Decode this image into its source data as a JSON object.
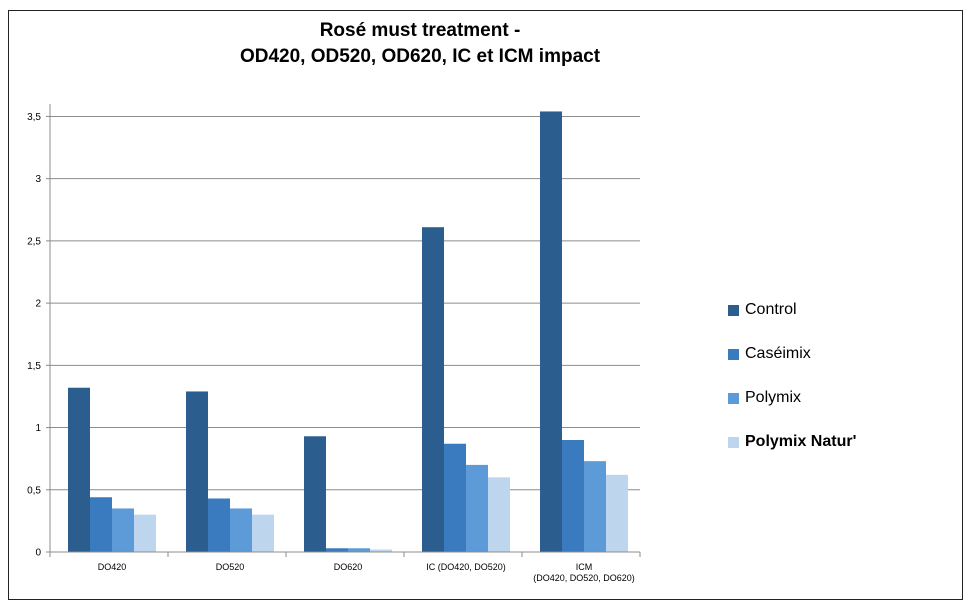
{
  "chart_data": {
    "type": "bar",
    "title_lines": [
      "Rosé must treatment -",
      "OD420, OD520, OD620, IC et ICM impact"
    ],
    "categories": [
      [
        "DO420"
      ],
      [
        "DO520"
      ],
      [
        "DO620"
      ],
      [
        "IC (DO420, DO520)"
      ],
      [
        "ICM",
        "(DO420, DO520, DO620)"
      ]
    ],
    "series": [
      {
        "name": "Control",
        "color": "#2c5d8f",
        "values": [
          1.32,
          1.29,
          0.93,
          2.61,
          3.54
        ]
      },
      {
        "name": "Caséimix",
        "color": "#3a7bc0",
        "values": [
          0.44,
          0.43,
          0.03,
          0.87,
          0.9
        ]
      },
      {
        "name": "Polymix",
        "color": "#5d9ad8",
        "values": [
          0.35,
          0.35,
          0.03,
          0.7,
          0.73
        ]
      },
      {
        "name": "Polymix Natur'",
        "color": "#bdd6ee",
        "values": [
          0.3,
          0.3,
          0.02,
          0.6,
          0.62
        ]
      }
    ],
    "yticks": [
      "0",
      "0,5",
      "1",
      "1,5",
      "2",
      "2,5",
      "3",
      "3,5"
    ],
    "ylim": [
      0,
      3.5
    ],
    "grid": true,
    "legend_position": "right"
  }
}
